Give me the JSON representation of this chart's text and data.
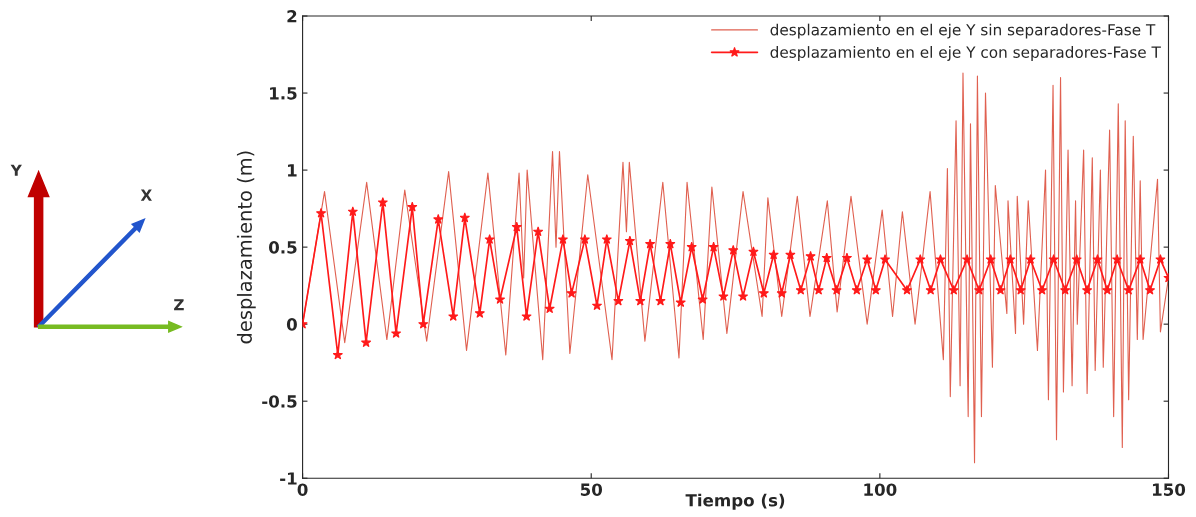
{
  "chart_data": {
    "type": "line",
    "xlabel": "Tiempo (s)",
    "ylabel": "desplazamiento (m)",
    "xlim": [
      0,
      150
    ],
    "xticks": [
      0,
      50,
      100,
      150
    ],
    "ylim": [
      -1,
      2
    ],
    "yticks": [
      -1,
      -0.5,
      0,
      0.5,
      1,
      1.5,
      2
    ],
    "grid": false,
    "legend": "top right",
    "annotations": [
      "Y",
      "X",
      "Z"
    ],
    "series": [
      {
        "name": "desplazamiento en el eje Y sin separadores-Fase T",
        "color": "#e06050",
        "marker": "none",
        "x": [
          0,
          3.8,
          7.3,
          11.1,
          14.6,
          17.7,
          21.5,
          25.3,
          28.4,
          32.1,
          35.2,
          37.5,
          38.3,
          38.9,
          41.6,
          43.3,
          43.9,
          44.5,
          46.3,
          49.4,
          53.6,
          55.5,
          56.1,
          56.6,
          59.3,
          62.4,
          65.2,
          66.6,
          69.4,
          70.9,
          73.5,
          76.3,
          79.6,
          80.6,
          83,
          85.7,
          87.9,
          90.9,
          92.6,
          95,
          97.8,
          100.4,
          102.2,
          103.9,
          106.1,
          108.7,
          111,
          111.7,
          112.2,
          113.2,
          113.9,
          114.4,
          115.3,
          115.7,
          116.4,
          116.9,
          117.6,
          118.3,
          119.5,
          120,
          122,
          122.2,
          123.5,
          123.8,
          124.9,
          125.7,
          127.3,
          128.7,
          129.2,
          130,
          130.6,
          131.3,
          131.8,
          132.6,
          133.3,
          133.9,
          134.2,
          135.3,
          135.9,
          136.8,
          137.3,
          138.2,
          138.7,
          139.8,
          140.5,
          141.3,
          142,
          142.5,
          143.1,
          143.9,
          144.6,
          145.1,
          145.6,
          148.1,
          148.6,
          150
        ],
        "values": [
          0,
          0.86,
          -0.12,
          0.92,
          -0.1,
          0.87,
          -0.11,
          0.99,
          -0.17,
          0.98,
          -0.2,
          0.98,
          0.3,
          1.0,
          -0.23,
          1.12,
          0.5,
          1.12,
          -0.19,
          0.97,
          -0.23,
          1.05,
          0.6,
          1.05,
          -0.11,
          0.92,
          -0.22,
          0.92,
          -0.1,
          0.89,
          -0.06,
          0.86,
          0.05,
          0.82,
          0.05,
          0.83,
          0.05,
          0.8,
          0.08,
          0.83,
          0.0,
          0.74,
          0.05,
          0.73,
          0.0,
          0.86,
          -0.23,
          1.01,
          -0.47,
          1.32,
          -0.4,
          1.63,
          -0.6,
          1.3,
          -0.9,
          1.61,
          -0.6,
          1.5,
          -0.28,
          0.9,
          0.07,
          0.8,
          -0.06,
          0.83,
          0.0,
          0.8,
          -0.17,
          1.0,
          -0.49,
          1.55,
          -0.75,
          1.6,
          -0.44,
          1.13,
          -0.4,
          0.8,
          0.0,
          1.13,
          -0.45,
          1.08,
          -0.3,
          1.0,
          -0.28,
          1.26,
          -0.6,
          1.43,
          -0.8,
          1.32,
          -0.49,
          1.22,
          -0.1,
          0.93,
          -0.1,
          0.94,
          -0.05,
          0.3
        ]
      },
      {
        "name": "desplazamiento en el eje Y con separadores-Fase T",
        "color": "#ff1a1a",
        "marker": "star",
        "x": [
          0,
          3.2,
          6.1,
          8.7,
          11,
          13.9,
          16.2,
          19,
          20.9,
          23.5,
          26.1,
          28.1,
          30.7,
          32.4,
          34.2,
          37.1,
          38.8,
          40.8,
          42.8,
          45.1,
          46.6,
          48.9,
          51,
          52.7,
          54.7,
          56.7,
          58.5,
          60.2,
          62,
          63.7,
          65.5,
          67.4,
          69.3,
          71.2,
          72.9,
          74.6,
          76.3,
          78.1,
          79.9,
          81.6,
          83,
          84.5,
          86.3,
          88,
          89.4,
          90.8,
          92.5,
          94.3,
          96,
          97.8,
          99.3,
          100.9,
          104.7,
          107,
          108.8,
          110.5,
          112.8,
          115.1,
          117.2,
          119.2,
          120.9,
          122.6,
          124.4,
          126.1,
          128.1,
          130.1,
          132.1,
          134.1,
          135.9,
          137.7,
          139.4,
          141.1,
          143.1,
          145.1,
          146.8,
          148.6,
          150
        ],
        "values": [
          0,
          0.72,
          -0.2,
          0.73,
          -0.12,
          0.79,
          -0.06,
          0.76,
          0.0,
          0.68,
          0.05,
          0.69,
          0.07,
          0.55,
          0.16,
          0.63,
          0.05,
          0.6,
          0.1,
          0.55,
          0.2,
          0.55,
          0.12,
          0.55,
          0.15,
          0.54,
          0.15,
          0.52,
          0.15,
          0.52,
          0.14,
          0.5,
          0.16,
          0.5,
          0.18,
          0.48,
          0.18,
          0.47,
          0.2,
          0.45,
          0.2,
          0.45,
          0.22,
          0.44,
          0.22,
          0.43,
          0.22,
          0.43,
          0.22,
          0.42,
          0.22,
          0.42,
          0.22,
          0.42,
          0.22,
          0.42,
          0.22,
          0.42,
          0.22,
          0.42,
          0.22,
          0.42,
          0.22,
          0.42,
          0.22,
          0.42,
          0.22,
          0.42,
          0.22,
          0.42,
          0.22,
          0.42,
          0.22,
          0.42,
          0.22,
          0.42,
          0.3
        ]
      }
    ]
  }
}
